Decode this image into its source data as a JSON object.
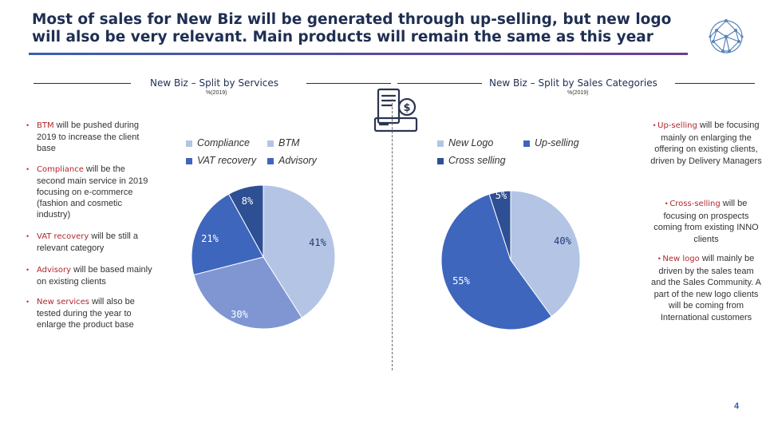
{
  "title": "Most of sales for New Biz will be generated through up-selling, but new logo will also be very relevant. Main products will remain the same as this year",
  "left_section": {
    "heading": "New Biz – Split by Services",
    "unit": "%(2019)",
    "bullets": [
      {
        "keyword": "BTM",
        "text": " will be pushed during 2019 to increase the client base"
      },
      {
        "keyword": "Compliance",
        "text": " will be the second main service in 2019 focusing on e-commerce (fashion and cosmetic industry)"
      },
      {
        "keyword": "VAT recovery",
        "text": " will be still a relevant category"
      },
      {
        "keyword": "Advisory",
        "text": " will be based mainly on existing clients"
      },
      {
        "keyword": "New services",
        "text": " will also be tested during the year to enlarge the product base"
      }
    ]
  },
  "right_section": {
    "heading": "New Biz – Split by Sales Categories",
    "unit": "%(2019)",
    "bullets": [
      {
        "keyword": "Up-selling",
        "text": " will be focusing mainly on enlarging the offering on existing clients, driven by Delivery Managers"
      },
      {
        "keyword": "Cross-selling",
        "text": " will be focusing on prospects coming from existing INNO clients"
      },
      {
        "keyword": "New logo",
        "text": " will mainly be driven by the sales team and the Sales Community. A part of the new logo clients will be coming from International customers"
      }
    ]
  },
  "chart_data": [
    {
      "type": "pie",
      "title": "New Biz – Split by Services",
      "legend_placement": "top",
      "categories": [
        "Compliance",
        "BTM",
        "VAT recovery",
        "Advisory"
      ],
      "values": [
        30,
        41,
        21,
        8
      ],
      "labels": [
        "30%",
        "41%",
        "21%",
        "8%"
      ],
      "colors": {
        "Compliance": "#7f96d2",
        "BTM": "#b4c4e4",
        "VAT recovery": "#3e66bd",
        "Advisory": "#2e4f93"
      }
    },
    {
      "type": "pie",
      "title": "New Biz – Split by Sales Categories",
      "legend_placement": "top",
      "categories": [
        "New Logo",
        "Up-selling",
        "Cross selling"
      ],
      "values": [
        40,
        55,
        5
      ],
      "labels": [
        "40%",
        "55%",
        "5%"
      ],
      "colors": {
        "New Logo": "#b4c4e4",
        "Up-selling": "#3e66bd",
        "Cross selling": "#2e4f93"
      }
    }
  ],
  "page_number": "4",
  "icons": {
    "logo": "network-sphere-icon",
    "illustration": "invoice-register-icon"
  }
}
